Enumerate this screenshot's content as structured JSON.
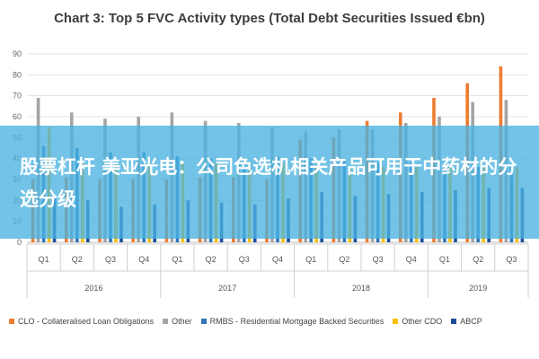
{
  "chart_data": {
    "type": "bar",
    "title": "Chart 3: Top 5 FVC Activity types (Total Debt Securities Issued €bn)",
    "xlabel": "",
    "ylabel": "",
    "ylim": [
      0,
      90
    ],
    "yticks": [
      0,
      10,
      20,
      30,
      40,
      50,
      60,
      70,
      80,
      90
    ],
    "grid": true,
    "legend_position": "bottom",
    "categories": [
      "Q1",
      "Q2",
      "Q3",
      "Q4",
      "Q1",
      "Q2",
      "Q3",
      "Q4",
      "Q1",
      "Q2",
      "Q3",
      "Q4",
      "Q1",
      "Q2",
      "Q3"
    ],
    "groups": [
      {
        "label": "2016",
        "count": 4
      },
      {
        "label": "2017",
        "count": 4
      },
      {
        "label": "2018",
        "count": 4
      },
      {
        "label": "2019",
        "count": 3
      }
    ],
    "series": [
      {
        "name": "CLO - Collateralised Loan Obligations",
        "color": "#ed7d31",
        "values": [
          30,
          31,
          30,
          30,
          30,
          31,
          31,
          30,
          49,
          50,
          58,
          62,
          69,
          76,
          84
        ]
      },
      {
        "name": "Other",
        "color": "#a5a5a5",
        "values": [
          69,
          62,
          59,
          60,
          62,
          58,
          57,
          55,
          53,
          54,
          54,
          57,
          60,
          67,
          68
        ]
      },
      {
        "name": "RMBS - Residential Mortgage Backed Securities",
        "color": "#2e75b6",
        "values": [
          46,
          45,
          43,
          43,
          41,
          40,
          40,
          41,
          40,
          39,
          38,
          38,
          37,
          36,
          36
        ]
      },
      {
        "name": "Other CDO",
        "color": "#ffc000",
        "values": [
          55,
          38,
          38,
          38,
          38,
          38,
          38,
          38,
          37,
          36,
          36,
          36,
          36,
          36,
          36
        ]
      },
      {
        "name": "ABCP",
        "color": "#1f4e9a",
        "values": [
          22,
          20,
          17,
          18,
          20,
          19,
          18,
          21,
          24,
          22,
          23,
          24,
          25,
          26,
          26
        ]
      }
    ]
  },
  "overlay": {
    "text": "股票杠杆 美亚光电：公司色选机相关产品可用于中药材的分选分级"
  }
}
